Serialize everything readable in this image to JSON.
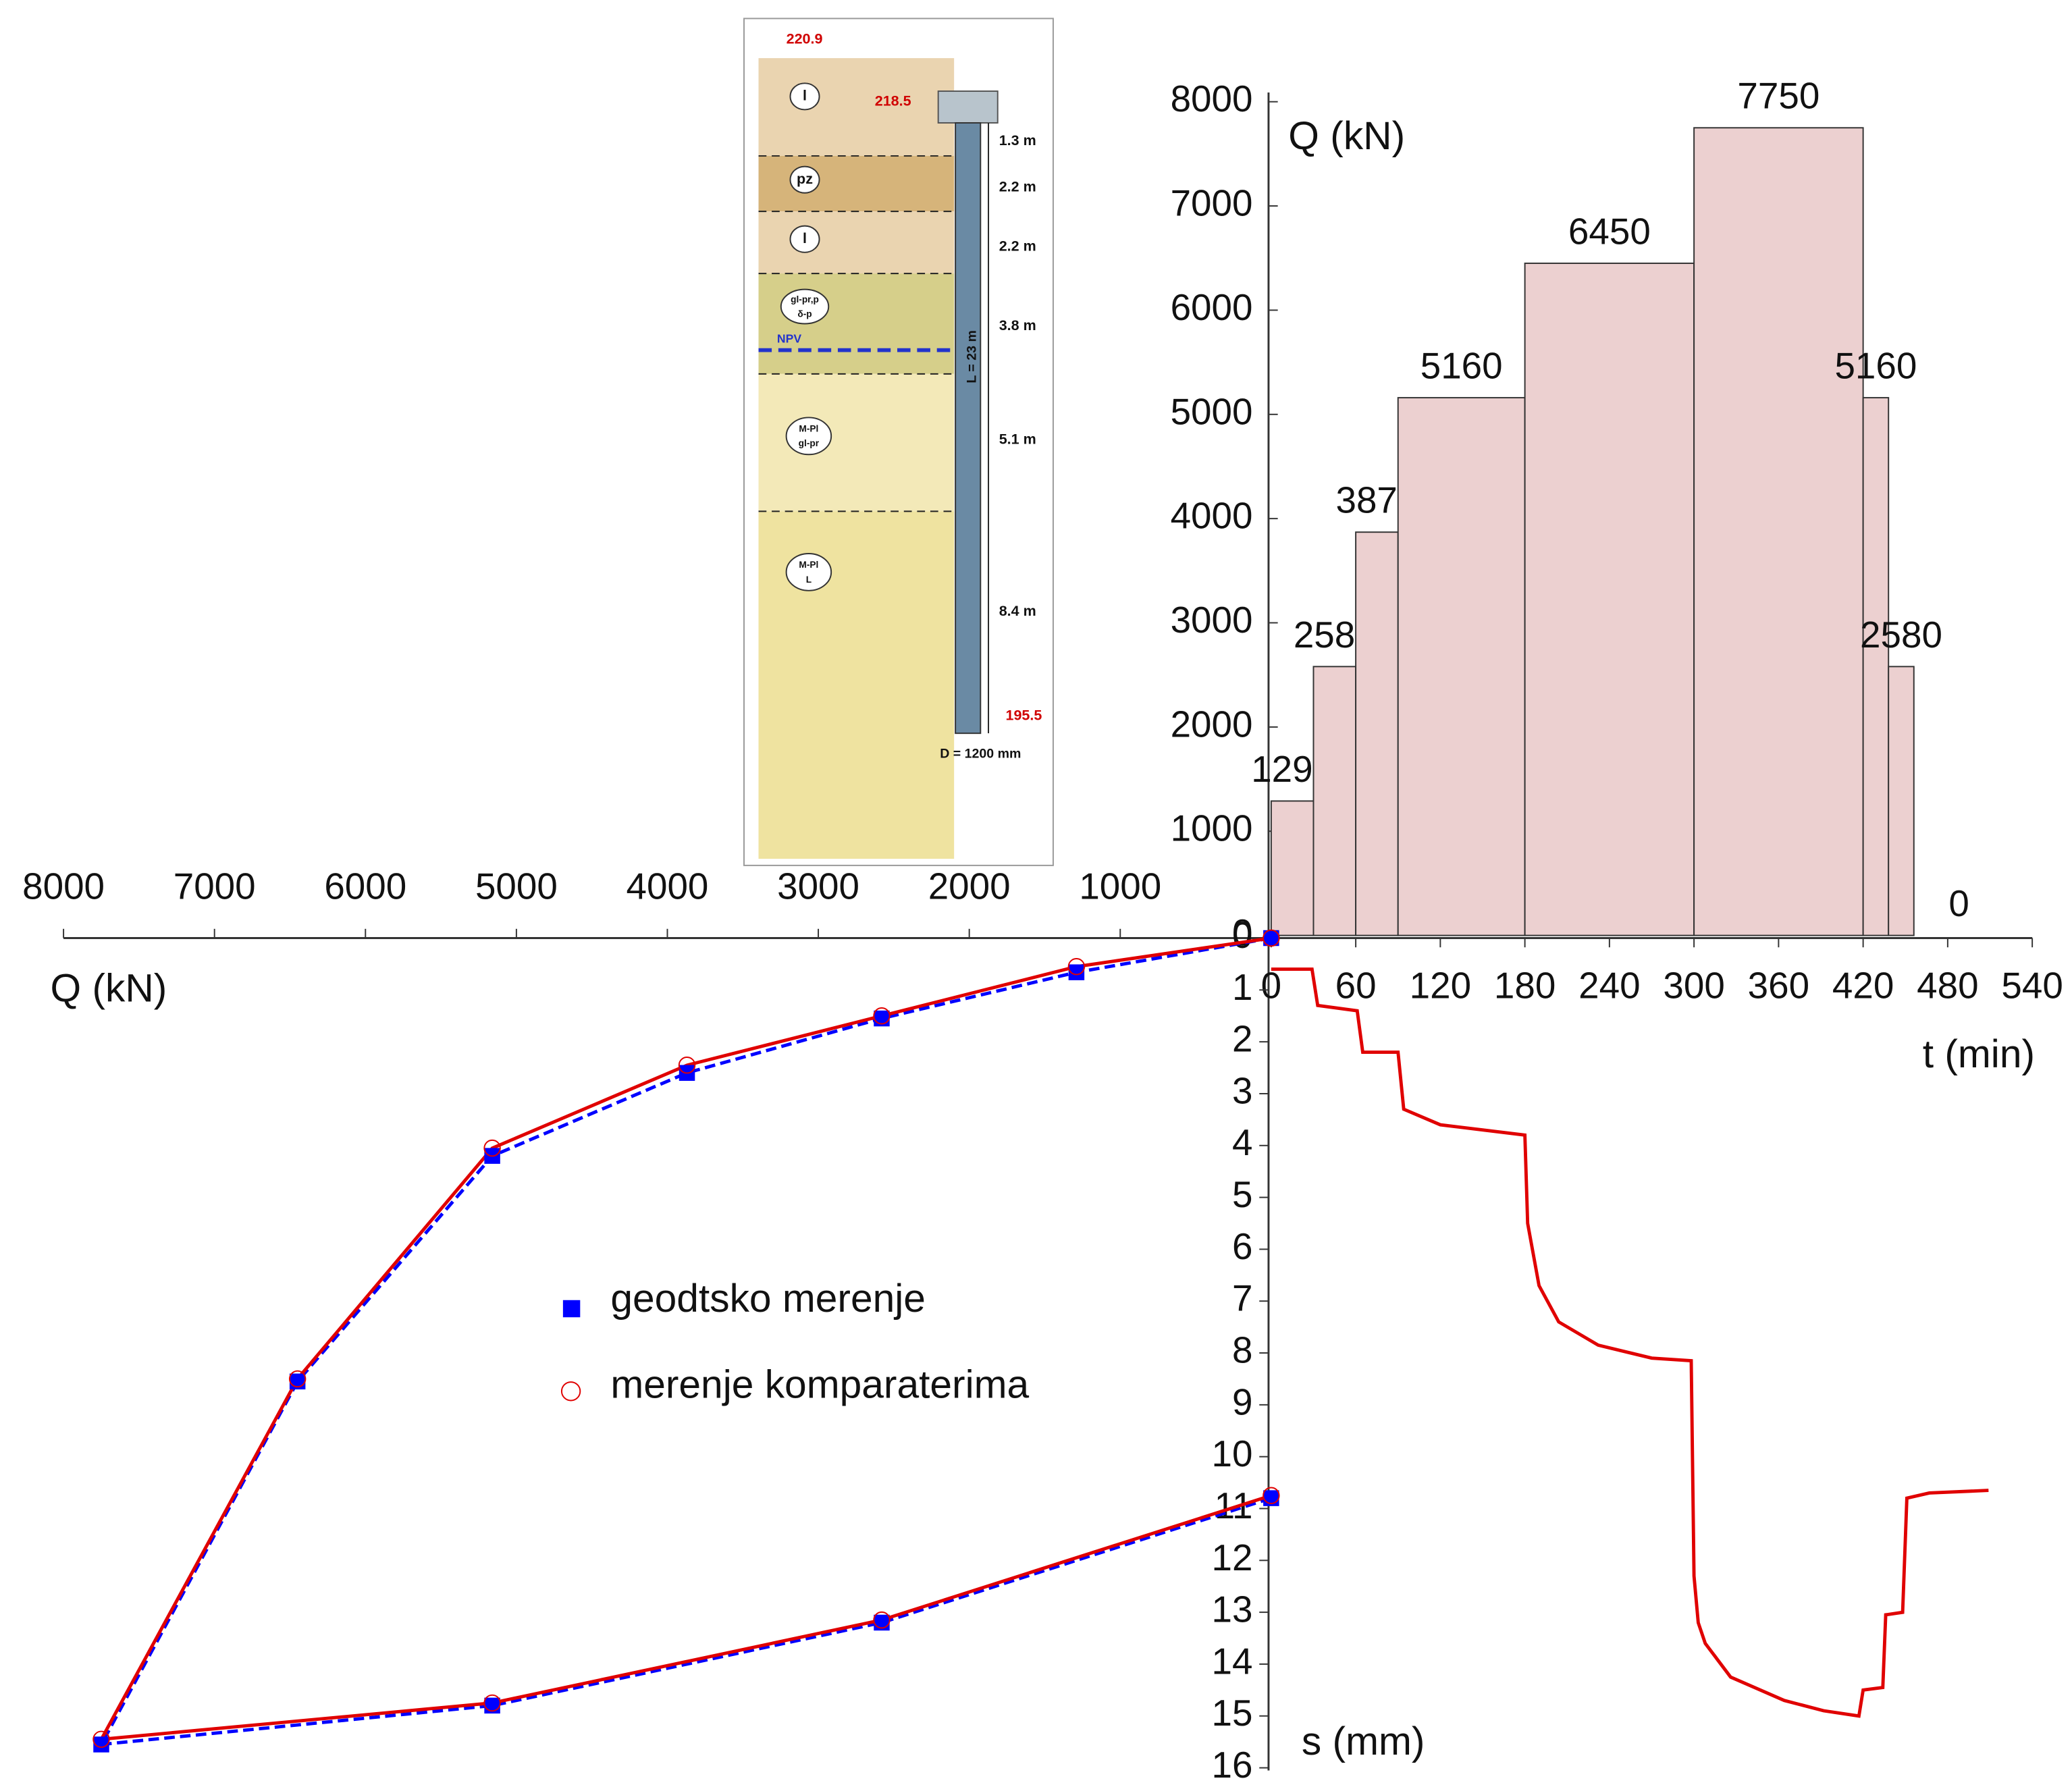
{
  "chart_data": [
    {
      "type": "histogram",
      "ylabel": "Q (kN)",
      "xlabel": "t (min)",
      "bins": [
        0,
        30,
        60,
        90,
        180,
        300,
        420,
        438,
        456,
        520
      ],
      "values": [
        1290,
        2580,
        3870,
        5160,
        6450,
        7750,
        5160,
        2580,
        0
      ],
      "color": "#ecd0d0",
      "edge_color": "#333333",
      "label_color": "#1f2fd0",
      "xlim": [
        0,
        540
      ],
      "xticks": [
        0,
        60,
        120,
        180,
        240,
        300,
        360,
        420,
        480,
        540
      ],
      "ylim": [
        0,
        8000
      ],
      "yticks": [
        0,
        1000,
        2000,
        3000,
        4000,
        5000,
        6000,
        7000,
        8000
      ]
    },
    {
      "type": "line",
      "ylabel": "s (mm)",
      "x": [
        0,
        29,
        33,
        61,
        65,
        90,
        94,
        120,
        150,
        180,
        182,
        190,
        204,
        232,
        270,
        298,
        300,
        303,
        308,
        326,
        364,
        392,
        417,
        420,
        434,
        436,
        448,
        451,
        467,
        509
      ],
      "series": [
        {
          "color": "#e00000",
          "values": [
            0.6,
            0.6,
            1.3,
            1.4,
            2.2,
            2.2,
            3.3,
            3.6,
            3.7,
            3.8,
            5.5,
            6.7,
            7.4,
            7.85,
            8.1,
            8.15,
            12.3,
            13.2,
            13.6,
            14.25,
            14.7,
            14.9,
            15.0,
            14.5,
            14.45,
            13.05,
            13.0,
            10.8,
            10.7,
            10.65
          ]
        }
      ],
      "ylim": [
        0,
        16
      ],
      "yticks": [
        0,
        1,
        2,
        3,
        4,
        5,
        6,
        7,
        8,
        9,
        10,
        11,
        12,
        13,
        14,
        15,
        16
      ]
    },
    {
      "type": "line",
      "xlabel": "Q (kN)",
      "x": [
        0,
        1290,
        2580,
        3870,
        5160,
        6450,
        7750,
        5160,
        2580,
        0
      ],
      "series": [
        {
          "name": "geodtsko merenje",
          "color": "#0000ff",
          "marker": "square",
          "values": [
            0,
            0.66,
            1.55,
            2.6,
            4.2,
            8.55,
            15.55,
            14.8,
            13.2,
            10.8
          ]
        },
        {
          "name": "merenje komparaterima",
          "color": "#e00000",
          "marker": "circle",
          "values": [
            0,
            0.55,
            1.5,
            2.45,
            4.05,
            8.5,
            15.45,
            14.75,
            13.15,
            10.75
          ]
        }
      ],
      "xlim": [
        8000,
        0
      ],
      "xticks": [
        8000,
        7000,
        6000,
        5000,
        4000,
        3000,
        2000,
        1000
      ]
    }
  ],
  "soil_profile": {
    "elevations": [
      "220.9",
      "218.5",
      "195.5"
    ],
    "layers": [
      "l",
      "pz",
      "l",
      "gl-pr,p",
      "δ-p",
      "M-Pl",
      "gl-pr",
      "M-Pl",
      "L"
    ],
    "water_level": "NPV",
    "thicknesses": [
      "1.3 m",
      "2.2 m",
      "2.2 m",
      "3.8 m",
      "5.1 m",
      "8.4 m"
    ],
    "pile_length": "L = 23 m",
    "pile_diameter": "D = 1200 mm"
  }
}
